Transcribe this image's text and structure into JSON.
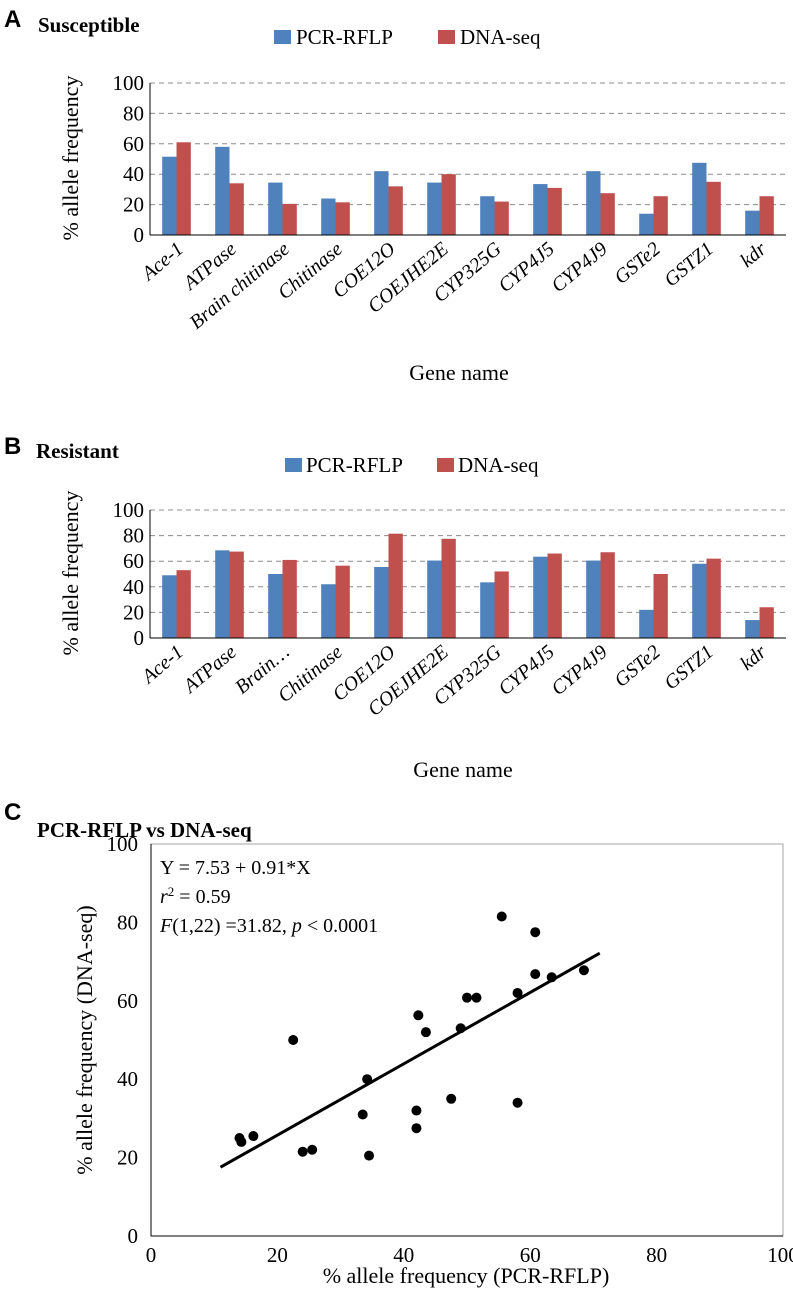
{
  "colors": {
    "rflp": "#4F81BD",
    "dnaseq": "#C0504D",
    "grid": "#8c8c8c"
  },
  "chart_data": [
    {
      "type": "bar",
      "letter": "A",
      "title": "Susceptible",
      "xlabel": "Gene name",
      "ylabel": "% allele frequency",
      "ylim": [
        0,
        100
      ],
      "yticks": [
        "0",
        "20",
        "40",
        "60",
        "80",
        "100"
      ],
      "categories": [
        "Ace-1",
        "ATPase",
        "Brain chitinase",
        "Chitinase",
        "COE12O",
        "COEJHE2E",
        "CYP325G",
        "CYP4J5",
        "CYP4J9",
        "GSTe2",
        "GSTZ1",
        "kdr"
      ],
      "series": [
        {
          "name": "PCR-RFLP",
          "values": [
            51.5,
            58,
            34.5,
            24,
            42,
            34.5,
            25.5,
            33.5,
            42,
            14,
            47.5,
            16
          ]
        },
        {
          "name": "DNA-seq",
          "values": [
            61,
            34,
            20.5,
            21.5,
            32,
            40,
            22,
            31,
            27.5,
            25.5,
            35,
            25.5
          ]
        }
      ]
    },
    {
      "type": "bar",
      "letter": "B",
      "title": "Resistant",
      "xlabel": "Gene name",
      "ylabel": "% allele frequency",
      "ylim": [
        0,
        100
      ],
      "yticks": [
        "0",
        "20",
        "40",
        "60",
        "80",
        "100"
      ],
      "categories": [
        "Ace-1",
        "ATPase",
        "Brain…",
        "Chitinase",
        "COE12O",
        "COEJHE2E",
        "CYP325G",
        "CYP4J5",
        "CYP4J9",
        "GSTe2",
        "GSTZ1",
        "kdr"
      ],
      "series": [
        {
          "name": "PCR-RFLP",
          "values": [
            49,
            68.5,
            50,
            42,
            55.5,
            60.5,
            43.5,
            63.5,
            60.5,
            22,
            58,
            14
          ]
        },
        {
          "name": "DNA-seq",
          "values": [
            53,
            67.5,
            61,
            56.5,
            81.5,
            77.5,
            52,
            66,
            67,
            50,
            62,
            24
          ]
        }
      ]
    },
    {
      "type": "scatter",
      "letter": "C",
      "title": "PCR-RFLP vs DNA-seq",
      "xlabel": "% allele frequency (PCR-RFLP)",
      "ylabel": "% allele frequency (DNA-seq)",
      "xlim": [
        0,
        100
      ],
      "ylim": [
        0,
        100
      ],
      "xticks": [
        "0",
        "20",
        "40",
        "60",
        "80",
        "100"
      ],
      "yticks": [
        "0",
        "20",
        "40",
        "60",
        "80",
        "100"
      ],
      "points": [
        [
          14,
          25
        ],
        [
          14.3,
          24
        ],
        [
          16.2,
          25.5
        ],
        [
          22.5,
          50
        ],
        [
          24,
          21.5
        ],
        [
          25.5,
          22
        ],
        [
          33.5,
          31
        ],
        [
          34.2,
          40
        ],
        [
          34.5,
          20.5
        ],
        [
          42,
          32
        ],
        [
          42,
          27.5
        ],
        [
          42.3,
          56.3
        ],
        [
          43.5,
          52
        ],
        [
          47.5,
          35
        ],
        [
          49,
          53
        ],
        [
          50,
          60.8
        ],
        [
          51.5,
          60.8
        ],
        [
          55.5,
          81.5
        ],
        [
          58,
          62
        ],
        [
          58,
          34
        ],
        [
          60.8,
          77.5
        ],
        [
          60.8,
          66.8
        ],
        [
          63.4,
          66
        ],
        [
          68.5,
          67.8
        ]
      ],
      "fit": {
        "intercept": 7.53,
        "slope": 0.91,
        "x_range": [
          11,
          71
        ]
      },
      "annotation": {
        "equation": "Y = 7.53 + 0.91*X",
        "r2_symbol": "r",
        "r2_sup": "2",
        "r2_value": " = 0.59",
        "f_symbol": "F",
        "f_df": "(1,22) =31.82, ",
        "p_symbol": "p",
        "p_value": " < 0.0001"
      }
    }
  ]
}
